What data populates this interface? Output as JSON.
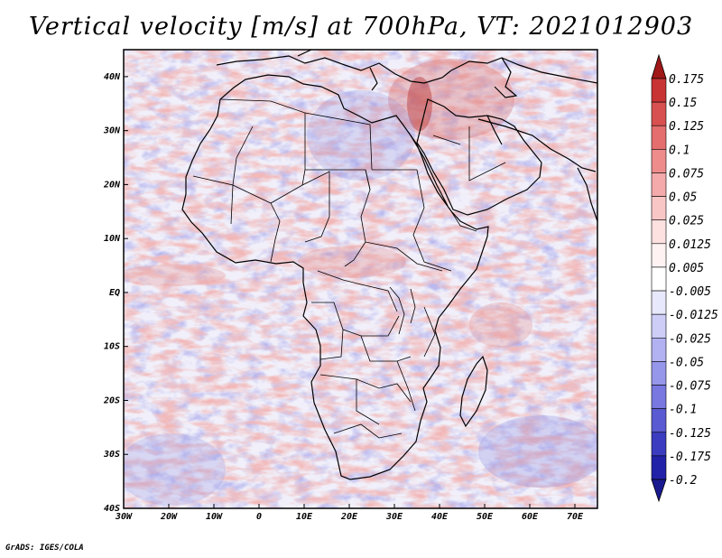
{
  "title": "Vertical velocity [m/s] at 700hPa, VT: 2021012903",
  "credit": "GrADS: IGES/COLA",
  "map": {
    "variable": "Vertical velocity",
    "units": "m/s",
    "level": "700hPa",
    "valid_time": "2021012903",
    "lon_range": [
      -30,
      75
    ],
    "lat_range": [
      -40,
      45
    ]
  },
  "lat_labels": [
    {
      "value": 40,
      "text": "40N"
    },
    {
      "value": 30,
      "text": "30N"
    },
    {
      "value": 20,
      "text": "20N"
    },
    {
      "value": 10,
      "text": "10N"
    },
    {
      "value": 0,
      "text": "EQ"
    },
    {
      "value": -10,
      "text": "10S"
    },
    {
      "value": -20,
      "text": "20S"
    },
    {
      "value": -30,
      "text": "30S"
    },
    {
      "value": -40,
      "text": "40S"
    }
  ],
  "lon_labels": [
    {
      "value": -30,
      "text": "30W"
    },
    {
      "value": -20,
      "text": "20W"
    },
    {
      "value": -10,
      "text": "10W"
    },
    {
      "value": 0,
      "text": "0"
    },
    {
      "value": 10,
      "text": "10E"
    },
    {
      "value": 20,
      "text": "20E"
    },
    {
      "value": 30,
      "text": "30E"
    },
    {
      "value": 40,
      "text": "40E"
    },
    {
      "value": 50,
      "text": "50E"
    },
    {
      "value": 60,
      "text": "60E"
    },
    {
      "value": 70,
      "text": "70E"
    }
  ],
  "colorbar": [
    {
      "label": "0.175",
      "color": "#b42222"
    },
    {
      "label": "0.15",
      "color": "#c83434"
    },
    {
      "label": "0.125",
      "color": "#d85050"
    },
    {
      "label": "0.1",
      "color": "#e46e6e"
    },
    {
      "label": "0.075",
      "color": "#ee8c8c"
    },
    {
      "label": "0.05",
      "color": "#f4aaaa"
    },
    {
      "label": "0.025",
      "color": "#f9c6c6"
    },
    {
      "label": "0.0125",
      "color": "#fde0e0"
    },
    {
      "label": "0.005",
      "color": "#fff2f2"
    },
    {
      "label": "-0.005",
      "color": "#ffffff"
    },
    {
      "label": "-0.0125",
      "color": "#e8e8fc"
    },
    {
      "label": "-0.025",
      "color": "#cdcdf8"
    },
    {
      "label": "-0.05",
      "color": "#b2b2f2"
    },
    {
      "label": "-0.075",
      "color": "#9696ea"
    },
    {
      "label": "-0.1",
      "color": "#7878e0"
    },
    {
      "label": "-0.125",
      "color": "#5a5ad2"
    },
    {
      "label": "-0.175",
      "color": "#3c3cc0"
    },
    {
      "label": "-0.2",
      "color": "#2222a8"
    }
  ],
  "colorbar_top_arrow_color": "#a01818",
  "colorbar_bottom_arrow_color": "#1a1a90"
}
